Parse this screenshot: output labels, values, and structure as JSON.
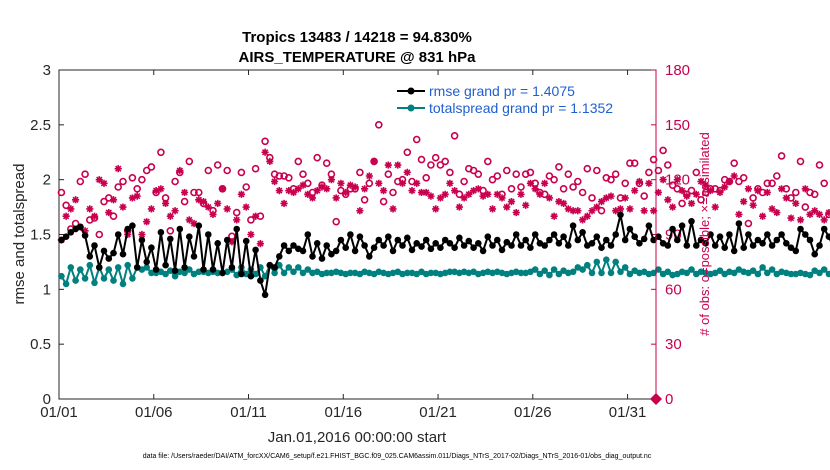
{
  "chart_data": {
    "type": "line",
    "title_line1": "Tropics 13483 / 14218 = 94.830%",
    "title_line2": "AIRS_TEMPERATURE @ 831 hPa",
    "xlabel": "Jan.01,2016 00:00:00 start",
    "ylabel": "rmse and totalspread",
    "ylabel_right": "# of obs: o=possible; ×=assimilated",
    "footer": "data file: /Users/raeder/DAI/ATM_forcXX/CAM6_setup/f.e21.FHIST_BGC.f09_025.CAM6assim.011/Diags_NTrS_2017-02/Diags_NTrS_2016-01/obs_diag_output.nc",
    "xlim": [
      1,
      32.5
    ],
    "ylim": [
      0,
      3
    ],
    "ylim_right": [
      0,
      180
    ],
    "xticks": [
      1,
      6,
      11,
      16,
      21,
      26,
      31
    ],
    "xtick_labels": [
      "01/01",
      "01/06",
      "01/11",
      "01/16",
      "01/21",
      "01/26",
      "01/31"
    ],
    "yticks": [
      "0",
      "0.5",
      "1",
      "1.5",
      "2",
      "2.5",
      "3"
    ],
    "yticks_right": [
      "0",
      "30",
      "60",
      "90",
      "120",
      "150",
      "180"
    ],
    "colors": {
      "rmse": "#000000",
      "spread": "#00807f",
      "obs": "#c8004e",
      "legend_text": "#1f5fd1"
    },
    "series": [
      {
        "name": "rmse",
        "legend": "rmse grand pr = 1.4075",
        "x0": 1.125,
        "dx": 0.25,
        "values": [
          1.45,
          1.48,
          1.52,
          1.55,
          1.57,
          1.49,
          1.3,
          1.4,
          1.2,
          1.35,
          1.28,
          1.33,
          1.5,
          1.32,
          1.55,
          1.58,
          1.2,
          1.45,
          1.25,
          1.38,
          1.18,
          1.52,
          1.22,
          1.46,
          1.17,
          1.55,
          1.2,
          1.48,
          1.3,
          1.58,
          1.18,
          1.5,
          1.18,
          1.42,
          1.15,
          1.45,
          1.2,
          1.55,
          1.14,
          1.44,
          1.12,
          1.36,
          1.08,
          0.95,
          1.22,
          1.2,
          1.3,
          1.4,
          1.35,
          1.4,
          1.37,
          1.35,
          1.5,
          1.3,
          1.42,
          1.28,
          1.4,
          1.32,
          1.35,
          1.45,
          1.38,
          1.5,
          1.35,
          1.48,
          1.4,
          1.3,
          1.38,
          1.45,
          1.4,
          1.48,
          1.35,
          1.45,
          1.4,
          1.47,
          1.36,
          1.42,
          1.39,
          1.45,
          1.37,
          1.42,
          1.38,
          1.45,
          1.42,
          1.38,
          1.47,
          1.4,
          1.44,
          1.38,
          1.42,
          1.35,
          1.48,
          1.4,
          1.45,
          1.36,
          1.43,
          1.4,
          1.5,
          1.4,
          1.45,
          1.38,
          1.5,
          1.42,
          1.4,
          1.45,
          1.5,
          1.42,
          1.48,
          1.4,
          1.58,
          1.45,
          1.52,
          1.4,
          1.42,
          1.48,
          1.38,
          1.45,
          1.4,
          1.5,
          1.68,
          1.45,
          1.55,
          1.48,
          1.42,
          1.46,
          1.58,
          1.45,
          1.48,
          1.42,
          1.4,
          1.55,
          1.45,
          1.58,
          1.4,
          1.62,
          1.4,
          1.45,
          1.42,
          1.5,
          1.4,
          1.48,
          1.38,
          1.5,
          1.35,
          1.6,
          1.38,
          1.5,
          1.4,
          1.45,
          1.42,
          1.5,
          1.4,
          1.45,
          1.5,
          1.42,
          1.38,
          1.35,
          1.55,
          1.5,
          1.45,
          1.32,
          1.4,
          1.55,
          1.48,
          1.38,
          1.52,
          1.48,
          1.45,
          1.55,
          1.55,
          1.52,
          1.5,
          1.5
        ]
      },
      {
        "name": "totalspread",
        "legend": "totalspread grand pr = 1.1352",
        "x0": 1.125,
        "dx": 0.25,
        "values": [
          1.12,
          1.05,
          1.2,
          1.08,
          1.18,
          1.1,
          1.22,
          1.06,
          1.2,
          1.1,
          1.18,
          1.08,
          1.2,
          1.05,
          1.22,
          1.1,
          1.2,
          1.18,
          1.2,
          1.15,
          1.15,
          1.16,
          1.14,
          1.17,
          1.12,
          1.16,
          1.15,
          1.18,
          1.14,
          1.16,
          1.16,
          1.15,
          1.16,
          1.15,
          1.15,
          1.16,
          1.18,
          1.13,
          1.2,
          1.14,
          1.18,
          1.14,
          1.2,
          1.12,
          1.22,
          1.15,
          1.22,
          1.15,
          1.2,
          1.16,
          1.2,
          1.15,
          1.18,
          1.15,
          1.16,
          1.14,
          1.15,
          1.15,
          1.16,
          1.15,
          1.14,
          1.15,
          1.15,
          1.14,
          1.16,
          1.15,
          1.14,
          1.16,
          1.15,
          1.14,
          1.15,
          1.16,
          1.14,
          1.15,
          1.15,
          1.14,
          1.16,
          1.14,
          1.15,
          1.15,
          1.14,
          1.15,
          1.16,
          1.16,
          1.15,
          1.16,
          1.15,
          1.16,
          1.14,
          1.15,
          1.16,
          1.15,
          1.16,
          1.15,
          1.14,
          1.15,
          1.16,
          1.15,
          1.15,
          1.16,
          1.18,
          1.14,
          1.17,
          1.13,
          1.18,
          1.14,
          1.17,
          1.15,
          1.16,
          1.2,
          1.18,
          1.22,
          1.15,
          1.25,
          1.15,
          1.27,
          1.15,
          1.25,
          1.16,
          1.2,
          1.14,
          1.17,
          1.15,
          1.16,
          1.14,
          1.15,
          1.18,
          1.14,
          1.16,
          1.13,
          1.14,
          1.16,
          1.15,
          1.18,
          1.14,
          1.16,
          1.15,
          1.14,
          1.15,
          1.17,
          1.14,
          1.16,
          1.15,
          1.18,
          1.16,
          1.15,
          1.17,
          1.14,
          1.2,
          1.15,
          1.18,
          1.14,
          1.16,
          1.15,
          1.14,
          1.14,
          1.15,
          1.14,
          1.13,
          1.17,
          1.15,
          1.18,
          1.14,
          1.17,
          1.16,
          1.18,
          1.17,
          1.19,
          1.18,
          1.19
        ]
      }
    ],
    "obs_possible": {
      "name": "possible",
      "marker": "o",
      "axis": "right",
      "x0": 1.125,
      "dx": 0.25,
      "values": [
        113,
        106,
        93,
        96,
        119,
        123,
        98,
        99,
        90,
        108,
        110,
        100,
        116,
        119,
        92,
        121,
        115,
        120,
        125,
        127,
        113,
        135,
        110,
        92,
        119,
        124,
        108,
        130,
        113,
        113,
        107,
        125,
        103,
        128,
        115,
        125,
        89,
        102,
        124,
        116,
        98,
        126,
        100,
        141,
        132,
        123,
        122,
        122,
        121,
        115,
        130,
        123,
        118,
        113,
        132,
        117,
        129,
        123,
        97,
        114,
        112,
        115,
        115,
        124,
        109,
        118,
        130,
        150,
        108,
        123,
        113,
        119,
        120,
        135,
        119,
        142,
        131,
        121,
        128,
        132,
        128,
        130,
        124,
        144,
        112,
        119,
        126,
        125,
        123,
        114,
        130,
        120,
        122,
        112,
        125,
        115,
        123,
        116,
        123,
        124,
        118,
        113,
        112,
        122,
        120,
        127,
        115,
        123,
        116,
        119,
        113,
        126,
        110,
        125,
        103,
        121,
        120,
        123,
        110,
        118,
        129,
        129,
        118,
        111,
        124,
        131,
        125,
        136,
        128,
        117,
        115,
        107,
        112,
        114,
        124,
        109,
        113,
        115,
        115,
        114,
        120,
        119,
        129,
        119,
        121,
        96,
        110,
        115,
        113,
        118,
        118,
        122,
        133,
        115,
        110,
        113,
        130,
        105,
        113,
        112,
        128,
        118,
        101,
        119,
        119,
        113,
        118,
        122,
        113,
        128
      ]
    },
    "obs_assimilated": {
      "name": "assimilated",
      "marker": "x",
      "axis": "right",
      "x0": 1.125,
      "dx": 0.25,
      "values": [
        87,
        100,
        104,
        109,
        94,
        92,
        104,
        100,
        120,
        118,
        102,
        109,
        126,
        105,
        90,
        110,
        111,
        90,
        97,
        104,
        114,
        115,
        107,
        100,
        103,
        125,
        113,
        98,
        96,
        109,
        108,
        105,
        101,
        107,
        115,
        104,
        86,
        98,
        112,
        105,
        90,
        100,
        85,
        135,
        130,
        119,
        114,
        107,
        114,
        113,
        115,
        117,
        112,
        110,
        114,
        116,
        115,
        120,
        110,
        118,
        113,
        117,
        116,
        103,
        115,
        122,
        130,
        118,
        114,
        128,
        104,
        128,
        118,
        124,
        114,
        118,
        113,
        113,
        111,
        104,
        110,
        112,
        118,
        114,
        105,
        110,
        112,
        114,
        115,
        111,
        112,
        104,
        112,
        110,
        105,
        108,
        102,
        112,
        106,
        118,
        115,
        112,
        118,
        110,
        100,
        108,
        107,
        104,
        103,
        103,
        98,
        100,
        103,
        105,
        108,
        110,
        111,
        103,
        104,
        110,
        104,
        114,
        119,
        103,
        118,
        103,
        113,
        120,
        109,
        105,
        120,
        114,
        111,
        107,
        112,
        119,
        117,
        114,
        105,
        113,
        116,
        119,
        122,
        101,
        108,
        115,
        106,
        114,
        100,
        113,
        104,
        102,
        115,
        110,
        99,
        107,
        98,
        115,
        101,
        103,
        101,
        98,
        102,
        96,
        100,
        96,
        107,
        101,
        99,
        114
      ]
    }
  }
}
